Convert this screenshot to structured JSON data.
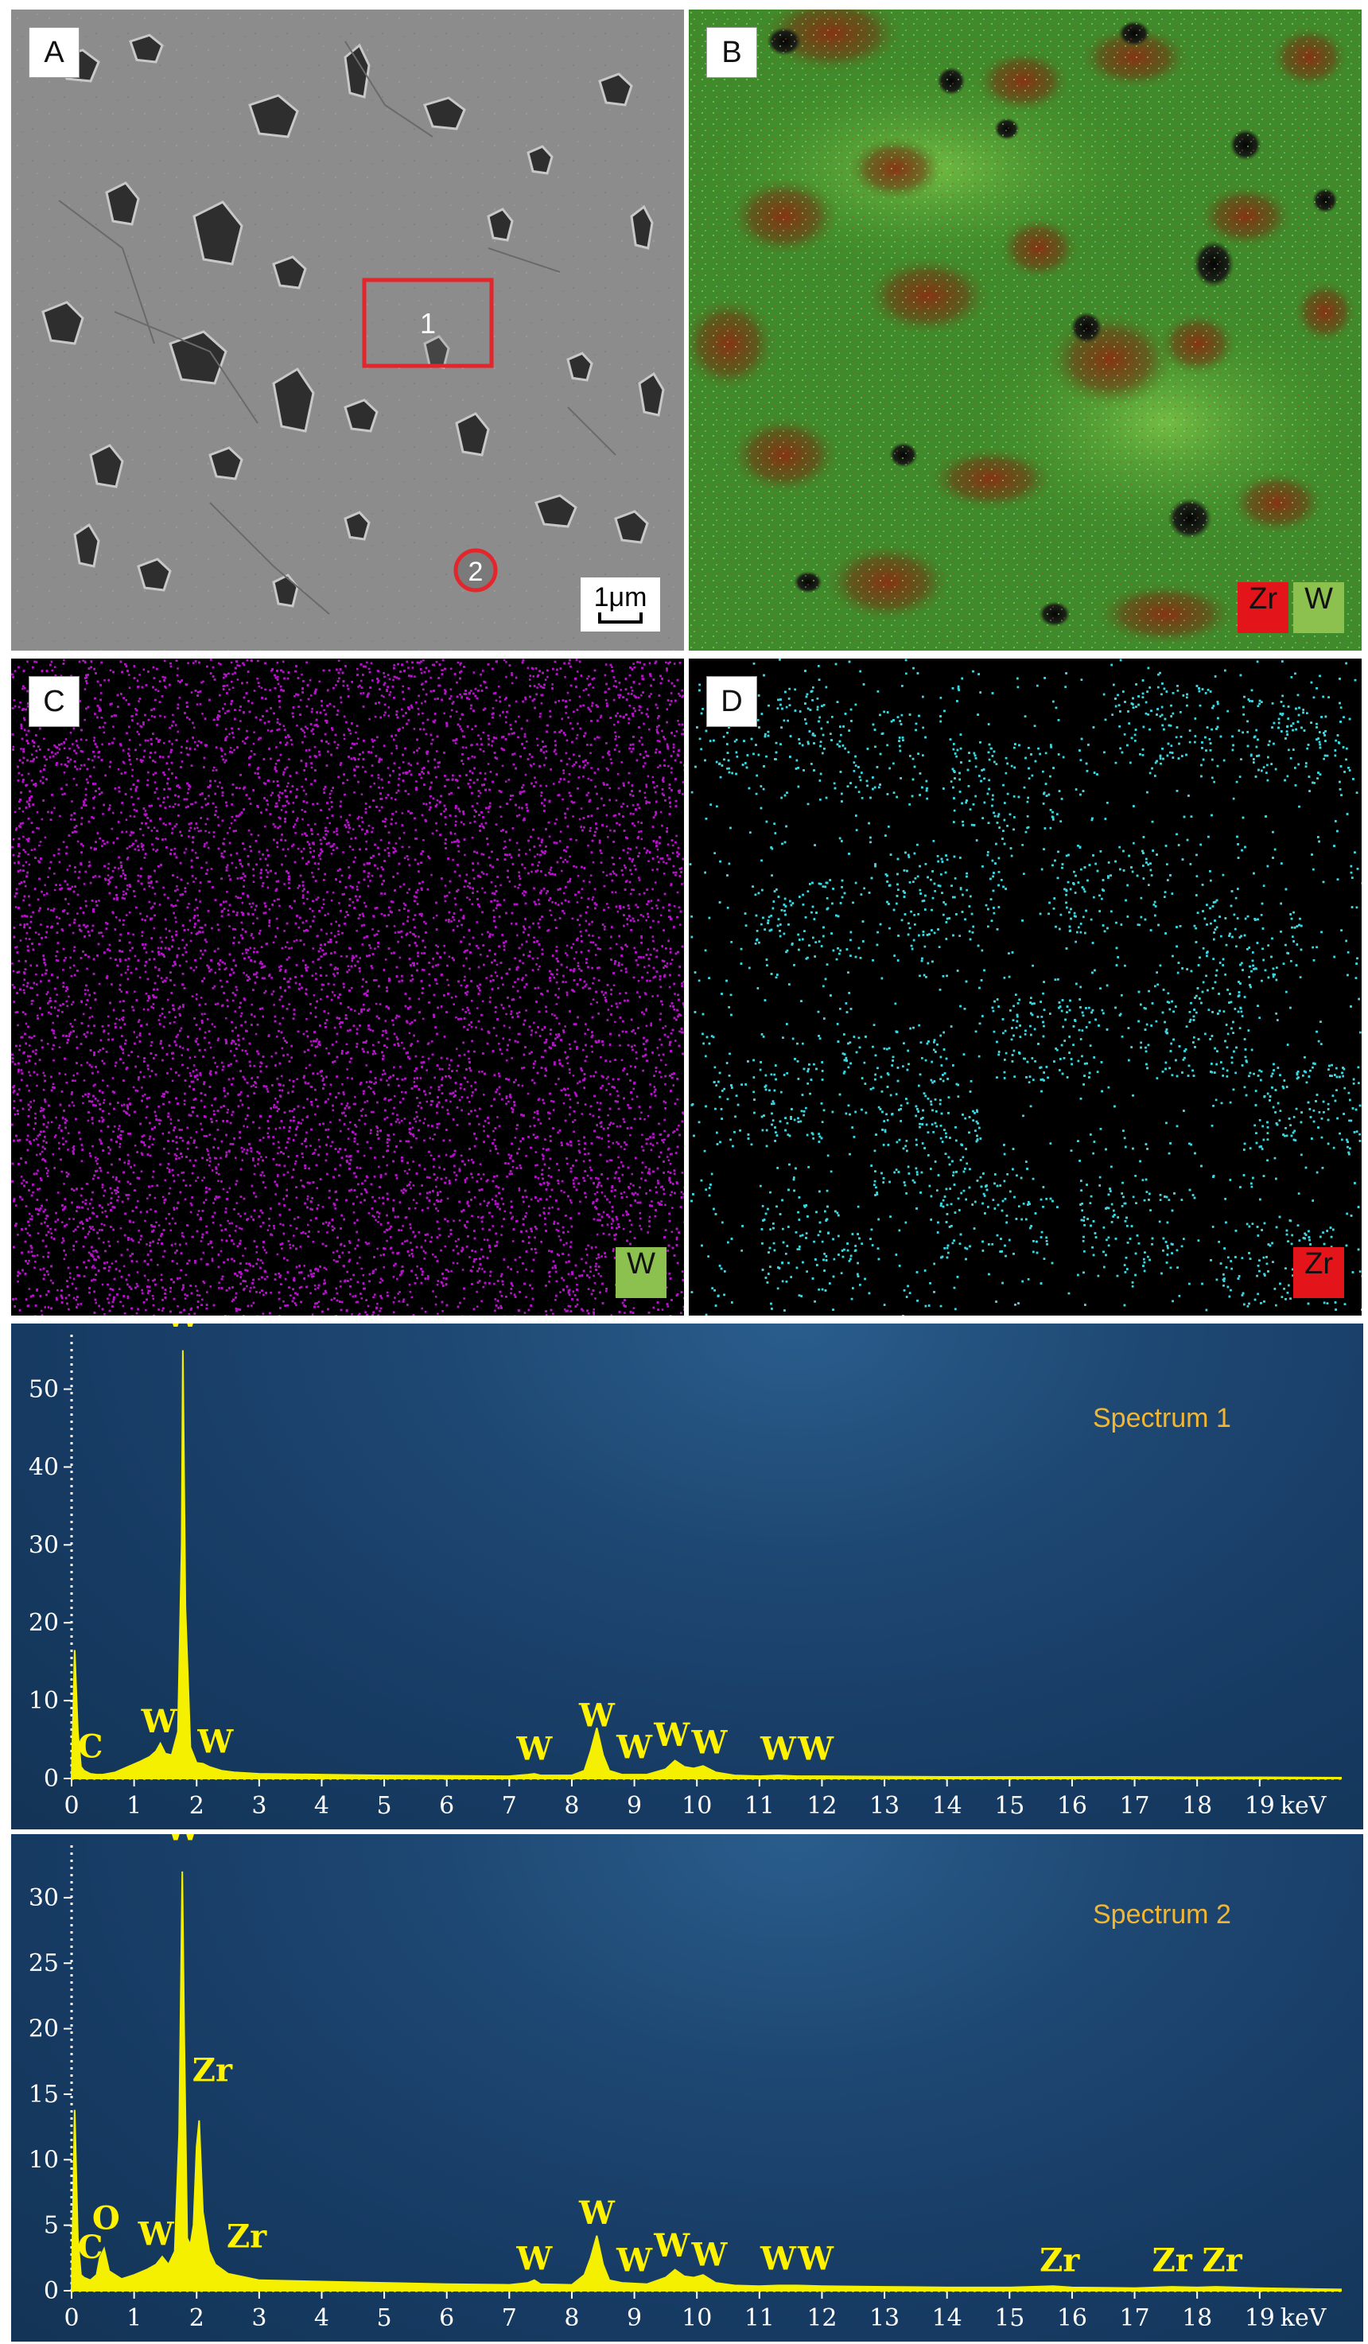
{
  "panels": {
    "a": {
      "letter": "A",
      "marker1": "1",
      "marker2": "2",
      "scale_label": "1μm"
    },
    "b": {
      "letter": "B",
      "legend_zr": "Zr",
      "legend_w": "W"
    },
    "c": {
      "letter": "C",
      "legend": "W",
      "dot_color": "#b513c9"
    },
    "d": {
      "letter": "D",
      "legend": "Zr",
      "dot_color": "#3cd6e0"
    }
  },
  "colors": {
    "marker": "#e2262b",
    "zr_legend": "#e3141a",
    "w_legend": "#8cc04f",
    "spectrum_fill": "#f4f000",
    "peak_label": "#fff200",
    "spectrum_title": "#f2b632"
  },
  "chart_data": [
    {
      "type": "line",
      "title": "Spectrum 1",
      "xlabel": "keV",
      "x_ticks": [
        "0",
        "1",
        "2",
        "3",
        "4",
        "5",
        "6",
        "7",
        "8",
        "9",
        "10",
        "11",
        "12",
        "13",
        "14",
        "15",
        "16",
        "17",
        "18",
        "19"
      ],
      "xlim": [
        0,
        20.3
      ],
      "ylim": [
        0,
        57
      ],
      "y_ticks": [
        0,
        10,
        20,
        30,
        40,
        50
      ],
      "series": [
        {
          "x": [
            0,
            0.05,
            0.1,
            0.15,
            0.2,
            0.3,
            0.4,
            0.5,
            0.7,
            0.9,
            1.1,
            1.25,
            1.35,
            1.42,
            1.5,
            1.6,
            1.7,
            1.76,
            1.78,
            1.82,
            1.9,
            2.0,
            2.1,
            2.2,
            2.4,
            2.6,
            3,
            4,
            5,
            6,
            7,
            7.3,
            7.4,
            7.5,
            8,
            8.2,
            8.3,
            8.4,
            8.5,
            8.6,
            8.8,
            9.2,
            9.5,
            9.65,
            9.8,
            9.95,
            10.1,
            10.3,
            10.6,
            11,
            11.3,
            11.6,
            12,
            13,
            14,
            15,
            16,
            17,
            18,
            19,
            20.3
          ],
          "y": [
            0,
            16.5,
            6,
            1.5,
            1,
            0.6,
            0.5,
            0.5,
            0.8,
            1.5,
            2.2,
            2.8,
            3.5,
            4.5,
            3.2,
            3,
            6,
            30,
            55,
            22,
            4,
            2,
            1.9,
            1.5,
            1,
            0.8,
            0.6,
            0.5,
            0.4,
            0.35,
            0.3,
            0.5,
            0.6,
            0.4,
            0.4,
            1,
            3.5,
            6.5,
            3,
            1,
            0.5,
            0.5,
            1.2,
            2.3,
            1.5,
            1.3,
            1.6,
            0.8,
            0.4,
            0.3,
            0.4,
            0.3,
            0.3,
            0.25,
            0.2,
            0.2,
            0.2,
            0.2,
            0.15,
            0.15,
            0.1
          ]
        }
      ],
      "peak_labels": [
        {
          "text": "W",
          "x": 1.78,
          "y": 58
        },
        {
          "text": "C",
          "x": 0.3,
          "y": 2.7
        },
        {
          "text": "W",
          "x": 1.4,
          "y": 5.9
        },
        {
          "text": "W",
          "x": 2.3,
          "y": 3.3
        },
        {
          "text": "W",
          "x": 7.4,
          "y": 2.4
        },
        {
          "text": "W",
          "x": 8.4,
          "y": 6.7
        },
        {
          "text": "W",
          "x": 9.0,
          "y": 2.6
        },
        {
          "text": "W",
          "x": 9.6,
          "y": 4.2
        },
        {
          "text": "W",
          "x": 10.2,
          "y": 3.2
        },
        {
          "text": "W",
          "x": 11.3,
          "y": 2.4
        },
        {
          "text": "W",
          "x": 11.9,
          "y": 2.4
        }
      ]
    },
    {
      "type": "line",
      "title": "Spectrum 2",
      "xlabel": "keV",
      "x_ticks": [
        "0",
        "1",
        "2",
        "3",
        "4",
        "5",
        "6",
        "7",
        "8",
        "9",
        "10",
        "11",
        "12",
        "13",
        "14",
        "15",
        "16",
        "17",
        "18",
        "19"
      ],
      "xlim": [
        0,
        20.3
      ],
      "ylim": [
        0,
        34
      ],
      "y_ticks": [
        0,
        5,
        10,
        15,
        20,
        25,
        30
      ],
      "series": [
        {
          "x": [
            0,
            0.05,
            0.1,
            0.15,
            0.2,
            0.3,
            0.4,
            0.45,
            0.52,
            0.6,
            0.8,
            1.0,
            1.2,
            1.35,
            1.45,
            1.55,
            1.65,
            1.72,
            1.77,
            1.8,
            1.85,
            1.9,
            1.95,
            2.0,
            2.04,
            2.1,
            2.2,
            2.3,
            2.5,
            2.8,
            3,
            4,
            5,
            6,
            7,
            7.3,
            7.4,
            7.5,
            8,
            8.2,
            8.3,
            8.4,
            8.5,
            8.6,
            8.8,
            9.2,
            9.5,
            9.65,
            9.8,
            9.95,
            10.1,
            10.3,
            10.6,
            11,
            11.3,
            11.6,
            12,
            13,
            14,
            15,
            15.7,
            16,
            17,
            17.6,
            18,
            18.3,
            19,
            20.3
          ],
          "y": [
            0,
            13.8,
            4,
            1.2,
            1,
            0.8,
            1.2,
            2.5,
            3.2,
            1.5,
            0.9,
            1.2,
            1.6,
            2,
            2.6,
            2,
            3,
            12,
            32,
            20,
            4,
            3.5,
            5,
            11,
            13,
            6,
            3,
            2,
            1.3,
            1,
            0.8,
            0.7,
            0.6,
            0.5,
            0.45,
            0.6,
            0.8,
            0.5,
            0.45,
            1.2,
            2.5,
            4.2,
            2,
            0.8,
            0.6,
            0.5,
            1,
            1.6,
            1.1,
            1,
            1.2,
            0.6,
            0.4,
            0.35,
            0.4,
            0.4,
            0.35,
            0.3,
            0.25,
            0.25,
            0.35,
            0.25,
            0.2,
            0.3,
            0.25,
            0.3,
            0.2,
            0.1
          ]
        }
      ],
      "peak_labels": [
        {
          "text": "W",
          "x": 1.78,
          "y": 34.4
        },
        {
          "text": "Zr",
          "x": 2.25,
          "y": 16
        },
        {
          "text": "C",
          "x": 0.3,
          "y": 2.5
        },
        {
          "text": "O",
          "x": 0.55,
          "y": 4.7
        },
        {
          "text": "W",
          "x": 1.35,
          "y": 3.5
        },
        {
          "text": "Zr",
          "x": 2.8,
          "y": 3.3
        },
        {
          "text": "W",
          "x": 7.4,
          "y": 1.6
        },
        {
          "text": "W",
          "x": 8.4,
          "y": 5.1
        },
        {
          "text": "W",
          "x": 9.0,
          "y": 1.5
        },
        {
          "text": "W",
          "x": 9.6,
          "y": 2.6
        },
        {
          "text": "W",
          "x": 10.2,
          "y": 1.9
        },
        {
          "text": "W",
          "x": 11.3,
          "y": 1.6
        },
        {
          "text": "W",
          "x": 11.9,
          "y": 1.6
        },
        {
          "text": "Zr",
          "x": 15.8,
          "y": 1.5
        },
        {
          "text": "Zr",
          "x": 17.6,
          "y": 1.5
        },
        {
          "text": "Zr",
          "x": 18.4,
          "y": 1.5
        }
      ]
    }
  ]
}
